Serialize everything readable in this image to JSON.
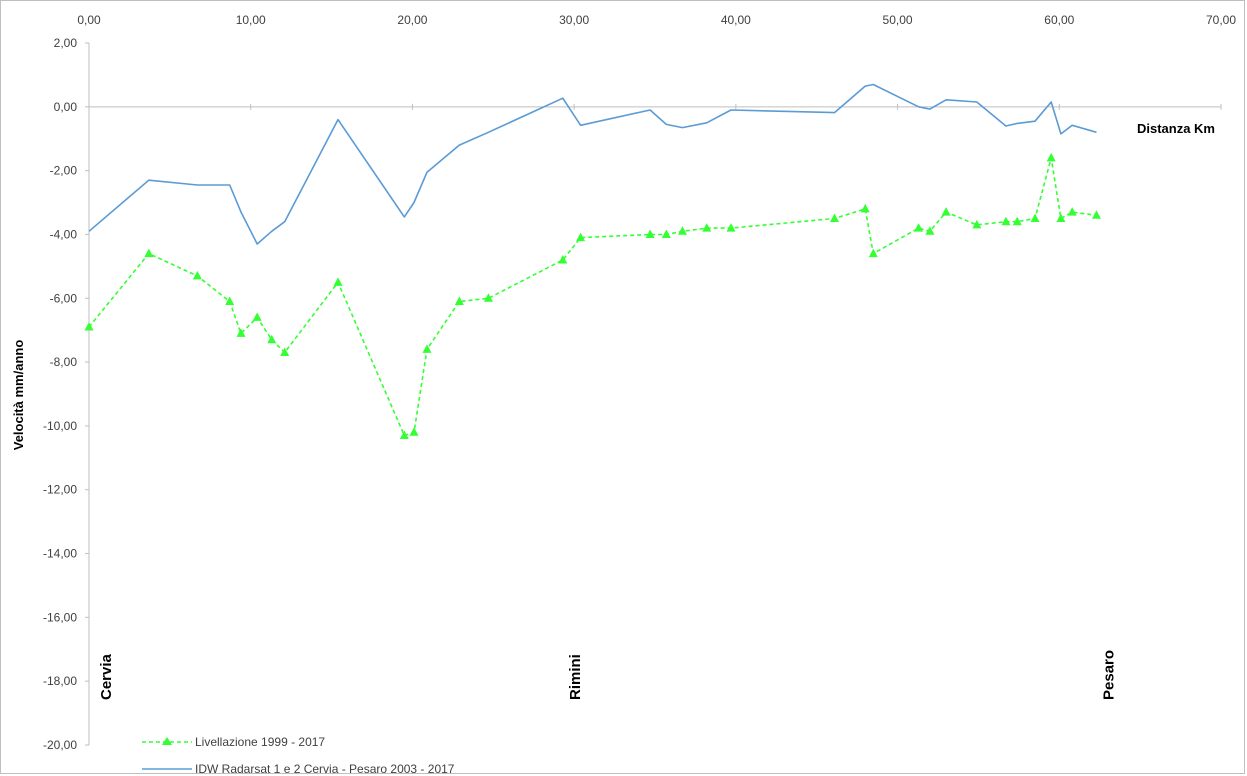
{
  "chart_data": {
    "type": "line",
    "xlabel": "Distanza Km",
    "ylabel": "Velocità mm/anno",
    "xlim": [
      0,
      70
    ],
    "ylim": [
      -20,
      2
    ],
    "x_ticks": [
      "0,00",
      "10,00",
      "20,00",
      "30,00",
      "40,00",
      "50,00",
      "60,00",
      "70,00"
    ],
    "y_ticks": [
      "2,00",
      "0,00",
      "-2,00",
      "-4,00",
      "-6,00",
      "-8,00",
      "-10,00",
      "-12,00",
      "-14,00",
      "-16,00",
      "-18,00",
      "-20,00"
    ],
    "grid": false,
    "legend_position": "bottom-left",
    "places": [
      {
        "label": "Cervia",
        "x": 0.5
      },
      {
        "label": "Rimini",
        "x": 29.5
      },
      {
        "label": "Pesaro",
        "x": 62.5
      }
    ],
    "series": [
      {
        "name": "Livellazione 1999 - 2017",
        "color": "#33ff33",
        "style": "dashed",
        "marker": "triangle",
        "x": [
          0,
          3.7,
          6.7,
          8.7,
          9.4,
          10.4,
          11.3,
          12.1,
          15.4,
          19.5,
          20.1,
          20.9,
          22.9,
          24.7,
          29.3,
          30.4,
          34.7,
          35.7,
          36.7,
          38.2,
          39.7,
          46.1,
          48.0,
          48.5,
          51.3,
          52.0,
          53.0,
          54.9,
          56.7,
          57.4,
          58.5,
          59.5,
          60.1,
          60.8,
          62.3
        ],
        "y": [
          -6.9,
          -4.6,
          -5.3,
          -6.1,
          -7.1,
          -6.6,
          -7.3,
          -7.7,
          -5.5,
          -10.3,
          -10.2,
          -7.6,
          -6.1,
          -6.0,
          -4.8,
          -4.1,
          -4.0,
          -4.0,
          -3.9,
          -3.8,
          -3.8,
          -3.5,
          -3.2,
          -4.6,
          -3.8,
          -3.9,
          -3.3,
          -3.7,
          -3.6,
          -3.6,
          -3.5,
          -1.6,
          -3.5,
          -3.3,
          -3.4
        ]
      },
      {
        "name": "IDW Radarsat 1 e 2 Cervia - Pesaro 2003 - 2017",
        "color": "#5b9bd5",
        "style": "solid",
        "marker": "none",
        "x": [
          0,
          3.7,
          6.7,
          8.7,
          9.4,
          10.4,
          11.3,
          12.1,
          15.4,
          19.5,
          20.1,
          20.9,
          22.9,
          24.7,
          29.3,
          30.4,
          34.7,
          35.7,
          36.7,
          38.2,
          39.7,
          46.1,
          48.0,
          48.5,
          51.3,
          52.0,
          53.0,
          54.9,
          56.7,
          57.4,
          58.5,
          59.5,
          60.1,
          60.8,
          62.3
        ],
        "y": [
          -3.9,
          -2.3,
          -2.45,
          -2.45,
          -3.3,
          -4.3,
          -3.9,
          -3.6,
          -0.4,
          -3.45,
          -3.0,
          -2.05,
          -1.2,
          -0.8,
          0.27,
          -0.58,
          -0.1,
          -0.55,
          -0.65,
          -0.5,
          -0.1,
          -0.18,
          0.65,
          0.7,
          0.0,
          -0.07,
          0.22,
          0.15,
          -0.6,
          -0.52,
          -0.45,
          0.15,
          -0.85,
          -0.58,
          -0.8
        ]
      }
    ]
  }
}
